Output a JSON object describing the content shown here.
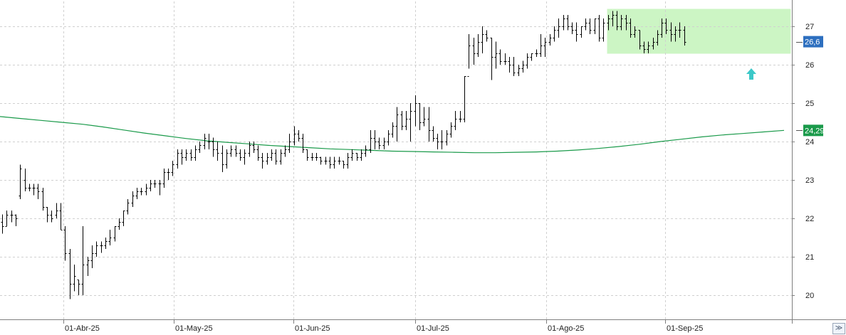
{
  "chart_data": {
    "type": "ohlc",
    "y_axis": {
      "min": 19.5,
      "max": 27.6,
      "ticks": [
        "20",
        "21",
        "22",
        "23",
        "24",
        "25",
        "26",
        "27"
      ],
      "side": "right",
      "grid": true
    },
    "x_axis": {
      "tick_labels": [
        "01-Abr-25",
        "01-May-25",
        "01-Jun-25",
        "01-Jul-25",
        "01-Ago-25",
        "01-Sep-25"
      ],
      "grid": true
    },
    "tags": {
      "last_price": "26,6",
      "moving_average": "24,29"
    },
    "colors": {
      "price": "#000000",
      "moving_average": "#1a9a4a",
      "tag_blue": "#2d6fbf",
      "tag_green": "#1a9a4a",
      "highlight_fill": "#ccf5c4",
      "arrow": "#3cc8c8"
    },
    "highlight": {
      "label": "range box",
      "y_low": 26.3,
      "y_high": 27.45,
      "from_index": 120,
      "to_index": 142
    },
    "arrow_icon": "up-arrow-icon",
    "series": [
      {
        "kind": "ohlc",
        "bars": [
          [
            21.9,
            22.1,
            21.6,
            21.8
          ],
          [
            21.8,
            22.2,
            21.8,
            22.1
          ],
          [
            22.1,
            22.2,
            21.9,
            22.1
          ],
          [
            22.1,
            22.1,
            21.8,
            22.0
          ],
          [
            22.6,
            23.4,
            22.5,
            23.3
          ],
          [
            23.0,
            23.3,
            22.7,
            22.8
          ],
          [
            22.8,
            22.9,
            22.7,
            22.8
          ],
          [
            22.8,
            22.9,
            22.6,
            22.8
          ],
          [
            22.8,
            22.9,
            22.5,
            22.7
          ],
          [
            22.7,
            22.8,
            22.2,
            22.3
          ],
          [
            22.3,
            22.3,
            21.9,
            22.1
          ],
          [
            22.1,
            22.2,
            21.9,
            22.0
          ],
          [
            22.1,
            22.4,
            22.0,
            22.2
          ],
          [
            22.2,
            22.4,
            21.7,
            21.7
          ],
          [
            21.7,
            21.8,
            20.9,
            21.1
          ],
          [
            21.1,
            21.2,
            19.9,
            20.3
          ],
          [
            20.3,
            20.8,
            20.1,
            20.5
          ],
          [
            20.4,
            20.4,
            20.0,
            20.3
          ],
          [
            20.3,
            21.8,
            20.0,
            20.8
          ],
          [
            20.8,
            21.0,
            20.5,
            20.9
          ],
          [
            20.9,
            21.3,
            20.7,
            21.1
          ],
          [
            21.1,
            21.4,
            21.0,
            21.3
          ],
          [
            21.3,
            21.4,
            21.1,
            21.3
          ],
          [
            21.3,
            21.5,
            21.2,
            21.4
          ],
          [
            21.4,
            21.7,
            21.3,
            21.5
          ],
          [
            21.5,
            21.8,
            21.4,
            21.8
          ],
          [
            21.8,
            22.0,
            21.7,
            21.9
          ],
          [
            21.9,
            22.2,
            21.8,
            22.2
          ],
          [
            22.2,
            22.5,
            22.1,
            22.4
          ],
          [
            22.4,
            22.7,
            22.3,
            22.6
          ],
          [
            22.6,
            22.8,
            22.5,
            22.7
          ],
          [
            22.7,
            22.8,
            22.6,
            22.7
          ],
          [
            22.7,
            22.9,
            22.6,
            22.8
          ],
          [
            22.8,
            23.0,
            22.7,
            22.9
          ],
          [
            22.9,
            23.0,
            22.8,
            22.9
          ],
          [
            22.9,
            23.0,
            22.6,
            22.9
          ],
          [
            22.9,
            23.3,
            22.8,
            23.2
          ],
          [
            23.2,
            23.3,
            23.0,
            23.2
          ],
          [
            23.2,
            23.5,
            23.1,
            23.4
          ],
          [
            23.4,
            23.8,
            23.3,
            23.7
          ],
          [
            23.7,
            23.8,
            23.4,
            23.6
          ],
          [
            23.6,
            23.8,
            23.5,
            23.7
          ],
          [
            23.7,
            23.8,
            23.5,
            23.6
          ],
          [
            23.6,
            23.9,
            23.5,
            23.8
          ],
          [
            23.8,
            24.0,
            23.7,
            23.9
          ],
          [
            23.9,
            24.2,
            23.8,
            24.1
          ],
          [
            24.0,
            24.2,
            23.8,
            24.0
          ],
          [
            24.0,
            24.1,
            23.6,
            23.8
          ],
          [
            23.8,
            24.0,
            23.5,
            23.7
          ],
          [
            23.7,
            23.9,
            23.2,
            23.4
          ],
          [
            23.4,
            23.8,
            23.3,
            23.7
          ],
          [
            23.7,
            23.9,
            23.6,
            23.8
          ],
          [
            23.8,
            23.9,
            23.6,
            23.7
          ],
          [
            23.7,
            23.8,
            23.5,
            23.6
          ],
          [
            23.6,
            23.8,
            23.4,
            23.7
          ],
          [
            23.7,
            24.0,
            23.6,
            23.9
          ],
          [
            23.9,
            24.0,
            23.7,
            23.8
          ],
          [
            23.8,
            23.9,
            23.5,
            23.6
          ],
          [
            23.6,
            23.7,
            23.3,
            23.5
          ],
          [
            23.5,
            23.7,
            23.4,
            23.6
          ],
          [
            23.6,
            23.8,
            23.5,
            23.7
          ],
          [
            23.7,
            23.8,
            23.4,
            23.5
          ],
          [
            23.5,
            23.8,
            23.4,
            23.7
          ],
          [
            23.7,
            23.9,
            23.6,
            23.8
          ],
          [
            23.8,
            24.2,
            23.7,
            24.0
          ],
          [
            24.0,
            24.4,
            23.9,
            24.2
          ],
          [
            24.2,
            24.3,
            24.0,
            24.1
          ],
          [
            24.1,
            24.2,
            23.7,
            23.8
          ],
          [
            23.8,
            23.8,
            23.5,
            23.6
          ],
          [
            23.6,
            23.7,
            23.5,
            23.6
          ],
          [
            23.6,
            23.7,
            23.5,
            23.6
          ],
          [
            23.6,
            23.6,
            23.4,
            23.5
          ],
          [
            23.5,
            23.6,
            23.4,
            23.5
          ],
          [
            23.5,
            23.6,
            23.3,
            23.4
          ],
          [
            23.4,
            23.6,
            23.3,
            23.5
          ],
          [
            23.5,
            23.6,
            23.4,
            23.5
          ],
          [
            23.5,
            23.5,
            23.3,
            23.4
          ],
          [
            23.4,
            23.7,
            23.3,
            23.6
          ],
          [
            23.6,
            23.8,
            23.5,
            23.7
          ],
          [
            23.7,
            23.7,
            23.5,
            23.6
          ],
          [
            23.6,
            23.8,
            23.5,
            23.7
          ],
          [
            23.7,
            23.9,
            23.6,
            23.8
          ],
          [
            23.8,
            24.3,
            23.7,
            24.1
          ],
          [
            24.1,
            24.3,
            23.8,
            24.0
          ],
          [
            24.0,
            24.1,
            23.8,
            23.9
          ],
          [
            23.9,
            24.1,
            23.8,
            24.0
          ],
          [
            24.0,
            24.3,
            23.9,
            24.2
          ],
          [
            24.2,
            24.5,
            24.1,
            24.4
          ],
          [
            24.4,
            24.9,
            24.0,
            24.7
          ],
          [
            24.7,
            24.8,
            24.3,
            24.4
          ],
          [
            24.4,
            24.8,
            24.3,
            24.6
          ],
          [
            24.6,
            25.0,
            24.0,
            24.8
          ],
          [
            24.8,
            25.2,
            24.4,
            25.0
          ],
          [
            25.0,
            25.0,
            24.3,
            24.5
          ],
          [
            24.5,
            24.9,
            24.4,
            24.6
          ],
          [
            24.6,
            24.9,
            24.0,
            24.3
          ],
          [
            24.3,
            24.4,
            24.0,
            24.1
          ],
          [
            24.1,
            24.2,
            23.8,
            24.0
          ],
          [
            24.0,
            24.3,
            23.8,
            24.0
          ],
          [
            24.0,
            24.3,
            23.9,
            24.2
          ],
          [
            24.2,
            24.5,
            24.1,
            24.4
          ],
          [
            24.4,
            24.8,
            24.3,
            24.6
          ],
          [
            24.6,
            24.8,
            24.5,
            24.6
          ],
          [
            24.6,
            25.7,
            24.5,
            25.7
          ],
          [
            25.7,
            26.8,
            25.9,
            26.5
          ],
          [
            26.5,
            26.7,
            26.0,
            26.3
          ],
          [
            26.3,
            26.8,
            26.2,
            26.6
          ],
          [
            26.6,
            27.0,
            26.3,
            26.8
          ],
          [
            26.8,
            26.9,
            26.6,
            26.7
          ],
          [
            26.7,
            26.7,
            25.6,
            26.2
          ],
          [
            26.2,
            26.6,
            25.9,
            26.3
          ],
          [
            26.3,
            26.4,
            26.0,
            26.1
          ],
          [
            26.1,
            26.3,
            26.0,
            26.1
          ],
          [
            26.1,
            26.2,
            25.8,
            26.0
          ],
          [
            26.0,
            26.2,
            25.7,
            25.8
          ],
          [
            25.8,
            26.0,
            25.7,
            25.9
          ],
          [
            25.9,
            26.1,
            25.8,
            26.0
          ],
          [
            26.0,
            26.3,
            25.9,
            26.2
          ],
          [
            26.2,
            26.3,
            26.1,
            26.3
          ],
          [
            26.3,
            26.4,
            26.2,
            26.3
          ],
          [
            26.3,
            26.8,
            26.2,
            26.5
          ],
          [
            26.5,
            26.7,
            26.2,
            26.6
          ],
          [
            26.6,
            26.8,
            26.5,
            26.7
          ],
          [
            26.7,
            27.0,
            26.6,
            26.9
          ],
          [
            26.9,
            27.2,
            26.7,
            27.0
          ],
          [
            27.0,
            27.3,
            26.9,
            27.2
          ],
          [
            27.2,
            27.3,
            26.9,
            27.0
          ],
          [
            27.0,
            27.1,
            26.8,
            26.9
          ],
          [
            26.9,
            27.1,
            26.6,
            26.8
          ],
          [
            26.8,
            27.0,
            26.7,
            27.0
          ],
          [
            27.0,
            27.2,
            26.9,
            27.1
          ],
          [
            27.1,
            27.2,
            26.8,
            26.9
          ],
          [
            26.9,
            27.2,
            26.8,
            27.2
          ],
          [
            27.2,
            27.3,
            26.6,
            26.7
          ],
          [
            26.7,
            27.2,
            26.6,
            27.1
          ],
          [
            27.1,
            27.3,
            26.9,
            27.2
          ],
          [
            27.2,
            27.4,
            27.0,
            27.3
          ],
          [
            27.3,
            27.4,
            26.9,
            27.0
          ],
          [
            27.0,
            27.3,
            26.9,
            27.2
          ],
          [
            27.2,
            27.3,
            26.9,
            27.1
          ],
          [
            27.1,
            27.2,
            26.7,
            26.8
          ],
          [
            26.8,
            27.0,
            26.7,
            26.9
          ],
          [
            26.9,
            26.9,
            26.4,
            26.5
          ],
          [
            26.5,
            26.6,
            26.3,
            26.4
          ],
          [
            26.4,
            26.6,
            26.3,
            26.5
          ],
          [
            26.5,
            26.7,
            26.4,
            26.6
          ],
          [
            26.6,
            26.9,
            26.5,
            26.8
          ],
          [
            26.8,
            27.2,
            26.7,
            27.1
          ],
          [
            27.1,
            27.2,
            26.8,
            26.9
          ],
          [
            26.9,
            27.1,
            26.6,
            26.8
          ],
          [
            26.8,
            27.0,
            26.6,
            26.9
          ],
          [
            26.9,
            27.1,
            26.7,
            26.9
          ],
          [
            26.9,
            27.0,
            26.5,
            26.6
          ]
        ]
      },
      {
        "kind": "moving_average",
        "values": [
          24.65,
          24.6,
          24.55,
          24.5,
          24.45,
          24.38,
          24.3,
          24.22,
          24.15,
          24.08,
          24.02,
          23.98,
          23.94,
          23.9,
          23.87,
          23.84,
          23.81,
          23.79,
          23.77,
          23.75,
          23.74,
          23.73,
          23.72,
          23.71,
          23.71,
          23.72,
          23.73,
          23.75,
          23.78,
          23.82,
          23.87,
          23.93,
          24.0,
          24.06,
          24.12,
          24.17,
          24.21,
          24.25,
          24.29
        ]
      }
    ]
  }
}
